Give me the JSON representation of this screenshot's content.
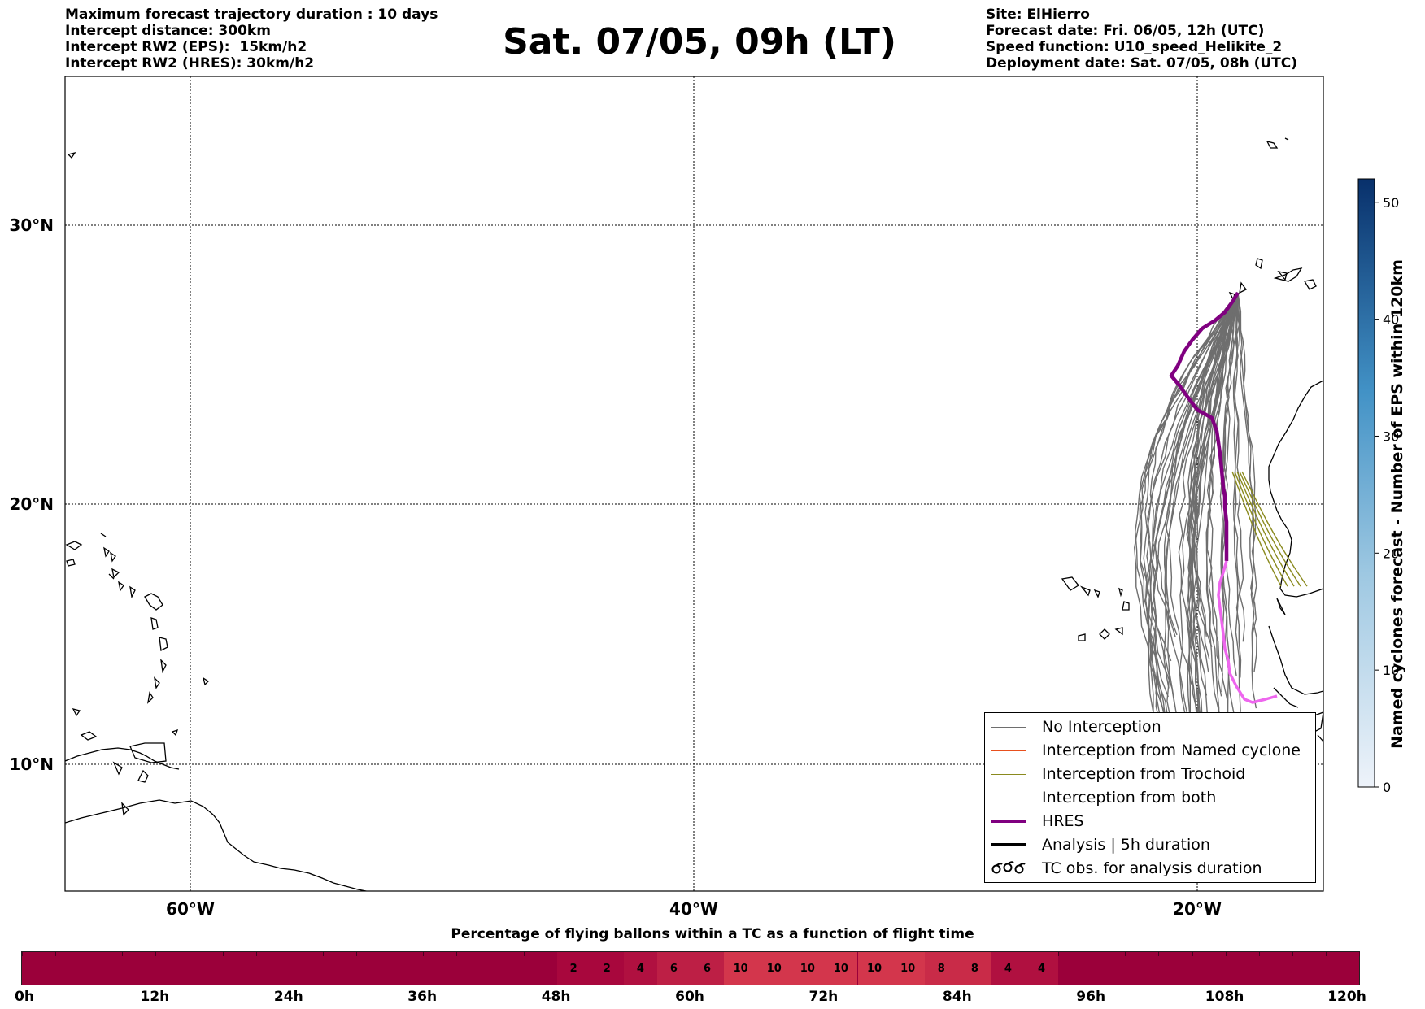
{
  "header": {
    "left": [
      "Maximum forecast trajectory duration : 10 days",
      "Intercept distance: 300km",
      "Intercept RW2 (EPS):  15km/h2",
      "Intercept RW2 (HRES): 30km/h2"
    ],
    "title": "Sat. 07/05, 09h (LT)",
    "right": [
      "Site: ElHierro",
      "Forecast date: Fri. 06/05, 12h (UTC)",
      "Speed function: U10_speed_Helikite_2",
      "Deployment date: Sat. 07/05, 08h (UTC)"
    ]
  },
  "map": {
    "lat_labels": [
      "30°N",
      "20°N",
      "10°N"
    ],
    "lon_labels": [
      "60°W",
      "40°W",
      "20°W"
    ],
    "lat_values": [
      30,
      20,
      10
    ],
    "lon_values": [
      -60,
      -40,
      -20
    ],
    "colors": {
      "no_interception": "#6e6e6e",
      "named_cyclone": "#e8501e",
      "trochoid": "#8a8a1e",
      "both": "#2e8b2e",
      "hres": "#800080",
      "hres_late": "#ee66ee",
      "analysis": "#000000"
    }
  },
  "legend": [
    {
      "label": "No Interception",
      "icon": "thin-gray-line"
    },
    {
      "label": "Interception from Named cyclone",
      "icon": "thin-orange-line"
    },
    {
      "label": "Interception from Trochoid",
      "icon": "thin-olive-line"
    },
    {
      "label": "Interception from both",
      "icon": "thin-green-line"
    },
    {
      "label": "HRES",
      "icon": "thick-purple-line"
    },
    {
      "label": "Analysis | 5h duration",
      "icon": "thick-black-line"
    },
    {
      "label": "TC obs. for analysis duration",
      "icon": "cyclone-symbols-icon"
    }
  ],
  "colorbar": {
    "label": "Named cyclones forecast - Number of EPS within 120km",
    "ticks": [
      "0",
      "10",
      "20",
      "30",
      "40",
      "50"
    ],
    "range": [
      0,
      52
    ],
    "color_low": "#e6eef8",
    "color_high": "#08306b"
  },
  "timeline": {
    "title": "Percentage of flying ballons within a TC as a function of flight time",
    "tick_labels": [
      "0h",
      "12h",
      "24h",
      "36h",
      "48h",
      "60h",
      "72h",
      "84h",
      "96h",
      "108h",
      "120h"
    ],
    "base_color": "#9b003a",
    "cells": [
      {
        "hour": 48,
        "value": "2"
      },
      {
        "hour": 51,
        "value": "2"
      },
      {
        "hour": 54,
        "value": "4"
      },
      {
        "hour": 57,
        "value": "6"
      },
      {
        "hour": 60,
        "value": "6"
      },
      {
        "hour": 63,
        "value": "10"
      },
      {
        "hour": 66,
        "value": "10"
      },
      {
        "hour": 69,
        "value": "10"
      },
      {
        "hour": 72,
        "value": "10"
      },
      {
        "hour": 75,
        "value": "10"
      },
      {
        "hour": 78,
        "value": "10"
      },
      {
        "hour": 81,
        "value": "8"
      },
      {
        "hour": 84,
        "value": "8"
      },
      {
        "hour": 87,
        "value": "4"
      },
      {
        "hour": 90,
        "value": "4"
      }
    ],
    "cell_colors": {
      "2": "#a8073d",
      "4": "#b01040",
      "6": "#bd1f45",
      "8": "#c92b48",
      "10": "#d3364c"
    }
  }
}
